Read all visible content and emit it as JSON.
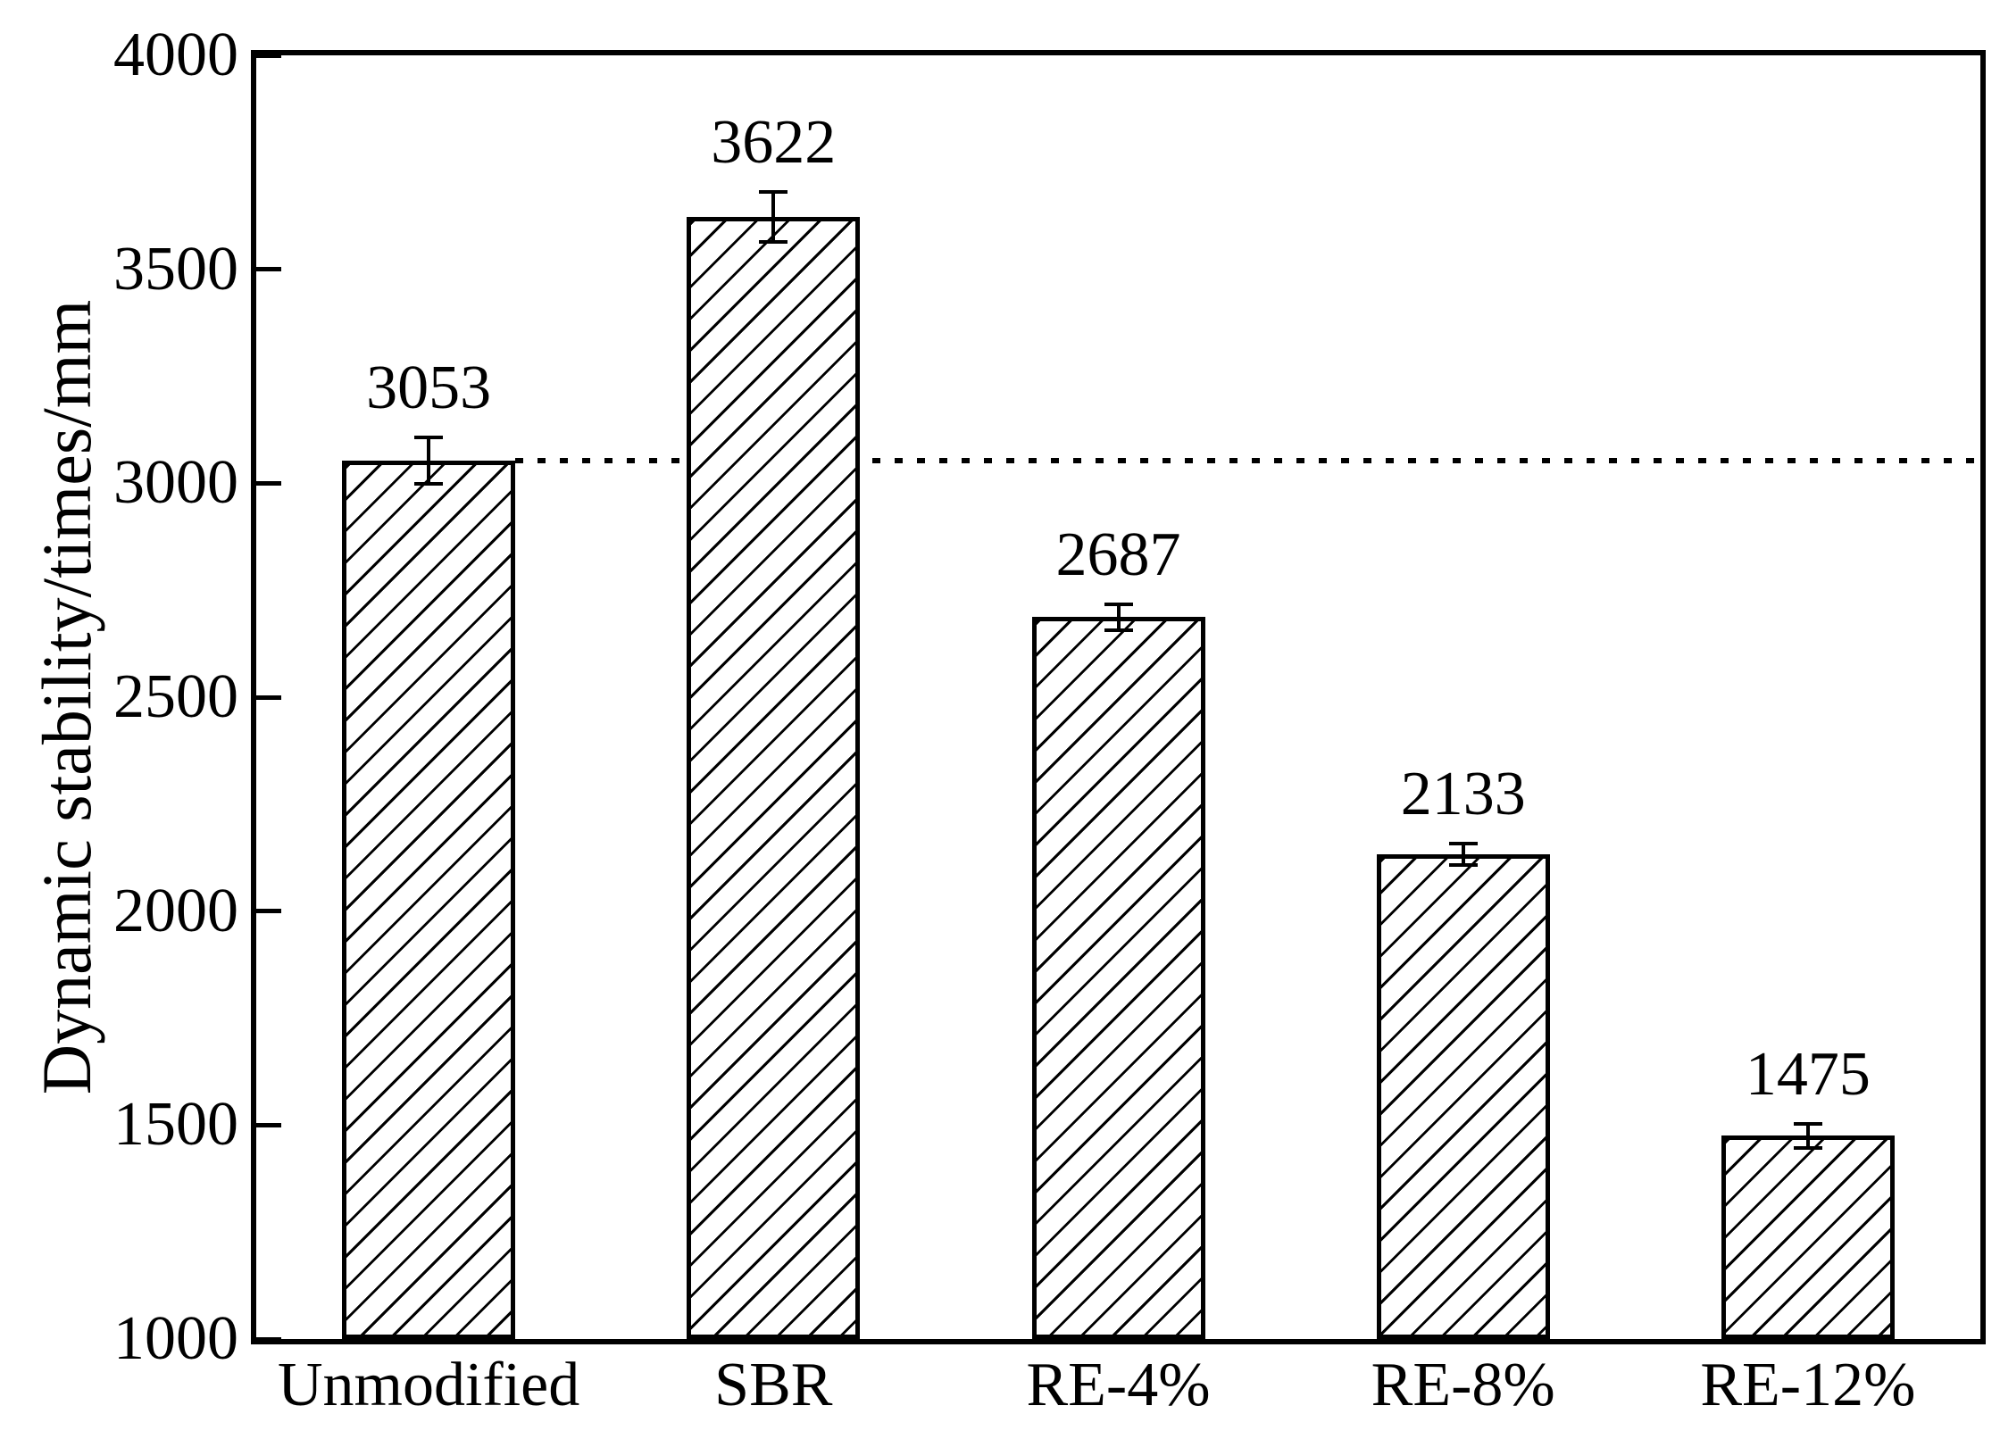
{
  "figure": {
    "background_color": "#ffffff",
    "ink_color": "#000000"
  },
  "chart_data": {
    "type": "bar",
    "title": "",
    "xlabel": "",
    "ylabel": "Dynamic stability/times/mm",
    "categories": [
      "Unmodified",
      "SBR",
      "RE-4%",
      "RE-8%",
      "RE-12%"
    ],
    "values": [
      3053,
      3622,
      2687,
      2133,
      1475
    ],
    "bar_value_labels": [
      "3053",
      "3622",
      "2687",
      "2133",
      "1475"
    ],
    "error_bars": [
      55,
      58,
      30,
      25,
      28
    ],
    "ylim": [
      1000,
      4000
    ],
    "yticks": [
      1000,
      1500,
      2000,
      2500,
      3000,
      3500,
      4000
    ],
    "ytick_labels": [
      "1000",
      "1500",
      "2000",
      "2500",
      "3000",
      "3500",
      "4000"
    ],
    "grid": false,
    "legend": null,
    "bar_fill_color": "#ffffff",
    "bar_hatch": "/",
    "bar_edge_color": "#000000",
    "reference_line": {
      "value": 3053,
      "style": "dotted",
      "color": "#000000",
      "note": "horizontal dotted line at Unmodified bar level, from first bar right edge to right frame"
    }
  }
}
